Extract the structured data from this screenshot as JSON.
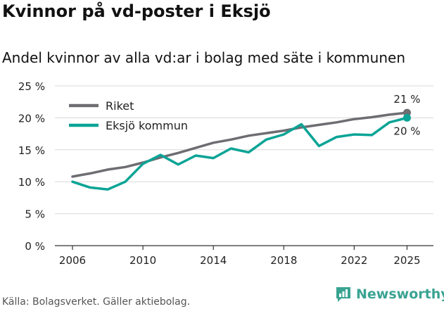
{
  "title": "Kvinnor på vd-poster i Eksjö",
  "subtitle": "Andel kvinnor av alla vd:ar i bolag med säte i kommunen",
  "source": "Källa: Bolagsverket. Gäller aktiebolag.",
  "brand": {
    "name": "Newsworthy",
    "icon": "newsworthy-logo-icon",
    "color": "#3aa392"
  },
  "colors": {
    "riket": "#6d6d72",
    "eksjo": "#0aa496",
    "grid": "#d9d9d9",
    "axis": "#333333"
  },
  "chart_data": {
    "type": "line",
    "title": "Kvinnor på vd-poster i Eksjö",
    "ylabel": "",
    "xlabel": "",
    "ylim": [
      0,
      25
    ],
    "yticks": [
      "0 %",
      "5 %",
      "10 %",
      "15 %",
      "20 %",
      "25 %"
    ],
    "xticks": [
      "2006",
      "2010",
      "2014",
      "2018",
      "2022",
      "2025"
    ],
    "legend_placement": "top-left",
    "x": [
      2006,
      2007,
      2008,
      2009,
      2010,
      2011,
      2012,
      2013,
      2014,
      2015,
      2016,
      2017,
      2018,
      2019,
      2020,
      2021,
      2022,
      2023,
      2024,
      2025
    ],
    "series": [
      {
        "name": "Riket",
        "color": "#6d6d72",
        "end_label": "21 %",
        "values": [
          10.8,
          11.3,
          11.9,
          12.3,
          13.0,
          13.8,
          14.5,
          15.3,
          16.1,
          16.6,
          17.2,
          17.6,
          18.0,
          18.5,
          18.9,
          19.3,
          19.8,
          20.1,
          20.5,
          20.8
        ]
      },
      {
        "name": "Eksjö kommun",
        "color": "#0aa496",
        "end_label": "20 %",
        "values": [
          10.0,
          9.1,
          8.8,
          10.0,
          12.8,
          14.2,
          12.7,
          14.1,
          13.7,
          15.2,
          14.6,
          16.6,
          17.4,
          19.0,
          15.6,
          17.0,
          17.4,
          17.3,
          19.3,
          20.0
        ]
      }
    ]
  }
}
